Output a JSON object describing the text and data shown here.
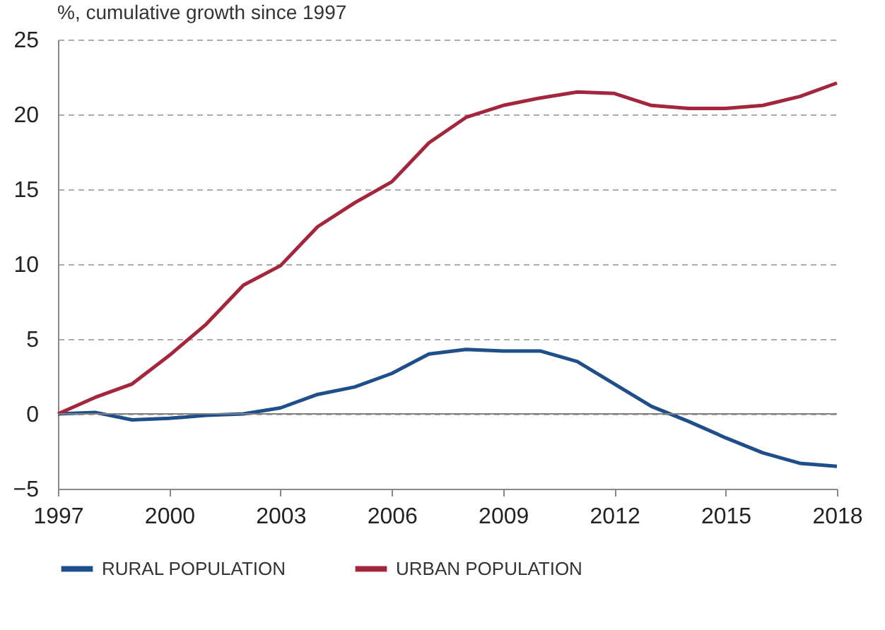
{
  "chart_data": {
    "type": "line",
    "ylabel": "%, cumulative growth since 1997",
    "x": [
      1997,
      1998,
      1999,
      2000,
      2001,
      2002,
      2003,
      2004,
      2005,
      2006,
      2007,
      2008,
      2009,
      2010,
      2011,
      2012,
      2013,
      2014,
      2015,
      2016,
      2017,
      2018
    ],
    "series": [
      {
        "name": "RURAL POPULATION",
        "color": "#1f4f8b",
        "values": [
          0,
          0.1,
          -0.4,
          -0.3,
          -0.1,
          0,
          0.4,
          1.3,
          1.8,
          2.7,
          4.0,
          4.3,
          4.2,
          4.2,
          3.5,
          2.0,
          0.5,
          -0.5,
          -1.6,
          -2.6,
          -3.3,
          -3.5
        ]
      },
      {
        "name": "URBAN POPULATION",
        "color": "#a3263d",
        "values": [
          0,
          1.1,
          2.0,
          3.9,
          6.0,
          8.6,
          9.9,
          12.5,
          14.1,
          15.5,
          18.1,
          19.8,
          20.6,
          21.1,
          21.5,
          21.4,
          20.6,
          20.4,
          20.4,
          20.6,
          21.2,
          22.1
        ]
      }
    ],
    "xlim": [
      1997,
      2018
    ],
    "xticks": [
      1997,
      2000,
      2003,
      2006,
      2009,
      2012,
      2015,
      2018
    ],
    "ylim": [
      -5,
      25
    ],
    "yticks": [
      -5,
      0,
      5,
      10,
      15,
      20,
      25
    ],
    "grid": "y",
    "legend": "bottom",
    "line_style": "solid",
    "ref_lines": [
      {
        "axis": "y",
        "value": 0,
        "color": "#808080",
        "line_style": "solid"
      }
    ]
  }
}
